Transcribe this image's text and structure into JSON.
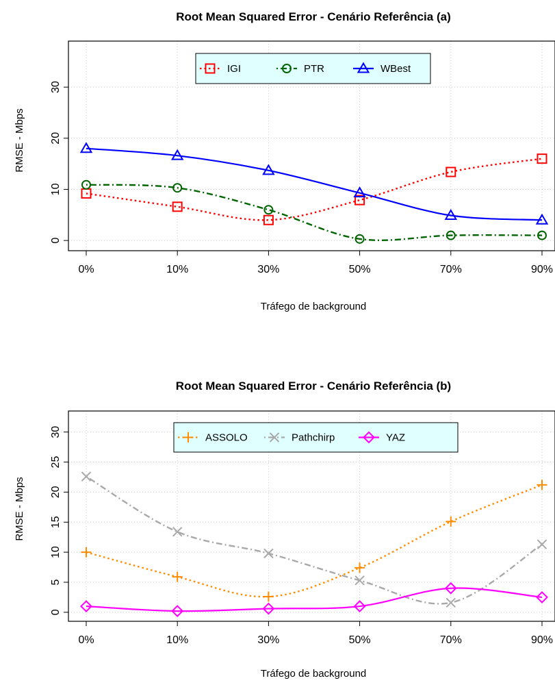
{
  "chart_data": [
    {
      "type": "line",
      "title": "Root Mean Squared Error - Cenário Referência (a)",
      "xlabel": "Tráfego de background",
      "ylabel": "RMSE - Mbps",
      "categories": [
        "0%",
        "10%",
        "30%",
        "50%",
        "70%",
        "90%"
      ],
      "ylim": [
        -2,
        39
      ],
      "yticks": [
        "0",
        "10",
        "20",
        "30"
      ],
      "grid": true,
      "legend_position": "top-center",
      "series": [
        {
          "name": "IGI",
          "values": [
            9.2,
            6.6,
            4.0,
            7.9,
            13.4,
            16.0
          ],
          "color": "#ff0000",
          "line": "dotted",
          "marker": "square"
        },
        {
          "name": "PTR",
          "values": [
            10.9,
            10.3,
            6.0,
            0.3,
            1.0,
            1.0
          ],
          "color": "#006400",
          "line": "dotdash",
          "marker": "circle"
        },
        {
          "name": "WBest",
          "values": [
            18.0,
            16.6,
            13.7,
            9.3,
            4.9,
            4.0
          ],
          "color": "#0000ff",
          "line": "solid",
          "marker": "triangle"
        }
      ]
    },
    {
      "type": "line",
      "title": "Root Mean Squared Error - Cenário Referência (b)",
      "xlabel": "Tráfego de background",
      "ylabel": "RMSE - Mbps",
      "categories": [
        "0%",
        "10%",
        "30%",
        "50%",
        "70%",
        "90%"
      ],
      "ylim": [
        -1.5,
        33.5
      ],
      "yticks": [
        "0",
        "5",
        "10",
        "15",
        "20",
        "25",
        "30"
      ],
      "grid": true,
      "legend_position": "top-center",
      "series": [
        {
          "name": "ASSOLO",
          "values": [
            10.0,
            5.9,
            2.6,
            7.4,
            15.1,
            21.2
          ],
          "color": "#ff8c00",
          "line": "dotted",
          "marker": "plus"
        },
        {
          "name": "Pathchirp",
          "values": [
            22.6,
            13.4,
            9.8,
            5.3,
            1.6,
            11.3
          ],
          "color": "#a9a9a9",
          "line": "dotdash",
          "marker": "cross"
        },
        {
          "name": "YAZ",
          "values": [
            1.0,
            0.2,
            0.6,
            1.0,
            4.0,
            2.5
          ],
          "color": "#ff00ff",
          "line": "solid",
          "marker": "diamond"
        }
      ]
    }
  ]
}
